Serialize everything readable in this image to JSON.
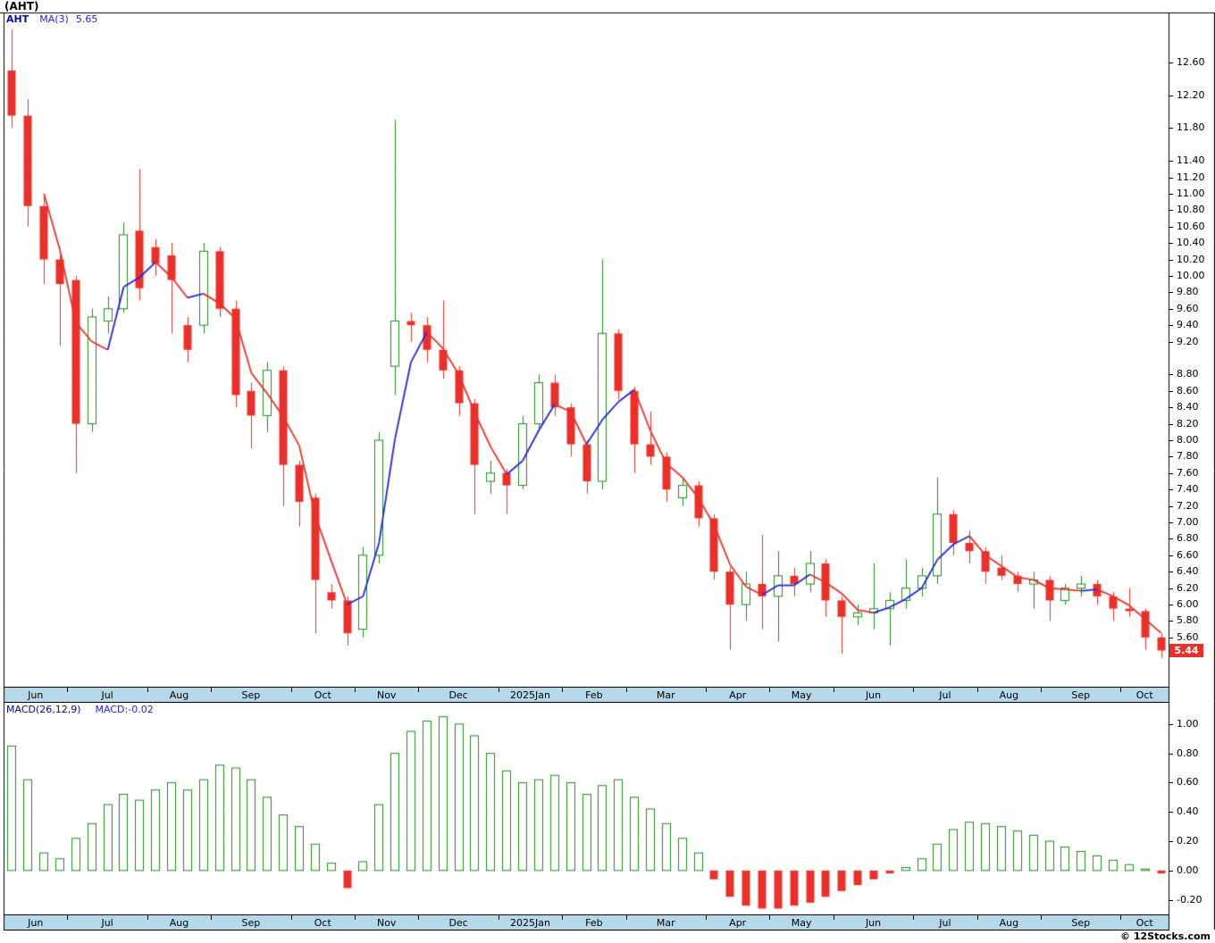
{
  "page": {
    "title": "(AHT)",
    "footer": "© 12Stocks.com"
  },
  "legend": {
    "symbol": "AHT",
    "ma_label": "MA(3)",
    "ma_value": "5.65"
  },
  "macd_header": {
    "indicator_label": "MACD(26,12,9)",
    "current_value_label": "MACD:-0.02"
  },
  "last_price_badge": "5.44",
  "colors": {
    "up": "#1f8a1f",
    "down": "#e8312a",
    "ma_up": "#2626d8",
    "ma_down": "#e8312a",
    "month_band": "#b5d8ea",
    "badge_bg": "#e8312a",
    "grid": "#e3e9e3",
    "frame_line": "#000000"
  },
  "price_axis": {
    "ticks": [
      "12.60",
      "12.20",
      "11.80",
      "11.40",
      "11.20",
      "11.00",
      "10.80",
      "10.60",
      "10.40",
      "10.20",
      "10.00",
      "9.80",
      "9.60",
      "9.40",
      "9.20",
      "8.80",
      "8.60",
      "8.40",
      "8.20",
      "8.00",
      "7.80",
      "7.60",
      "7.40",
      "7.20",
      "7.00",
      "6.80",
      "6.60",
      "6.40",
      "6.20",
      "6.00",
      "5.80",
      "5.60"
    ]
  },
  "macd_axis": {
    "ticks": [
      "1.00",
      "0.80",
      "0.60",
      "0.40",
      "0.20",
      "0.00",
      "-0.20"
    ]
  },
  "chart_data": {
    "type": "candlestick",
    "symbol": "AHT",
    "interval": "weekly",
    "title": "(AHT) weekly candlestick chart with MA(3) overlay and MACD(26,12,9) histogram",
    "price_ylim": [
      5.0,
      13.2
    ],
    "macd_ylim": [
      -0.3,
      1.06
    ],
    "ma_period": 3,
    "last_close": 5.44,
    "months": [
      {
        "label": "Jun",
        "weeks": 4
      },
      {
        "label": "Jul",
        "weeks": 5
      },
      {
        "label": "Aug",
        "weeks": 4
      },
      {
        "label": "Sep",
        "weeks": 5
      },
      {
        "label": "Oct",
        "weeks": 4
      },
      {
        "label": "Nov",
        "weeks": 4
      },
      {
        "label": "Dec",
        "weeks": 5
      },
      {
        "label": "2025Jan",
        "weeks": 4
      },
      {
        "label": "Feb",
        "weeks": 4
      },
      {
        "label": "Mar",
        "weeks": 5
      },
      {
        "label": "Apr",
        "weeks": 4
      },
      {
        "label": "May",
        "weeks": 4
      },
      {
        "label": "Jun",
        "weeks": 5
      },
      {
        "label": "Jul",
        "weeks": 4
      },
      {
        "label": "Aug",
        "weeks": 4
      },
      {
        "label": "Sep",
        "weeks": 5
      },
      {
        "label": "Oct",
        "weeks": 3
      }
    ],
    "ohlc": [
      [
        12.5,
        13.0,
        11.8,
        11.95
      ],
      [
        11.95,
        12.15,
        10.6,
        10.85
      ],
      [
        10.85,
        11.0,
        9.9,
        10.2
      ],
      [
        10.2,
        10.25,
        9.15,
        9.9
      ],
      [
        9.95,
        10.0,
        7.6,
        8.2
      ],
      [
        8.2,
        9.6,
        8.1,
        9.5
      ],
      [
        9.45,
        9.75,
        9.3,
        9.6
      ],
      [
        9.6,
        10.65,
        9.55,
        10.5
      ],
      [
        10.55,
        11.3,
        9.7,
        9.85
      ],
      [
        10.35,
        10.45,
        10.0,
        10.15
      ],
      [
        10.25,
        10.4,
        9.3,
        9.95
      ],
      [
        9.4,
        9.5,
        8.95,
        9.1
      ],
      [
        9.4,
        10.4,
        9.3,
        10.3
      ],
      [
        10.3,
        10.35,
        9.5,
        9.6
      ],
      [
        9.6,
        9.7,
        8.4,
        8.55
      ],
      [
        8.6,
        8.7,
        7.9,
        8.3
      ],
      [
        8.3,
        8.95,
        8.1,
        8.85
      ],
      [
        8.85,
        8.9,
        7.2,
        7.7
      ],
      [
        7.7,
        7.75,
        6.95,
        7.25
      ],
      [
        7.3,
        7.35,
        5.65,
        6.3
      ],
      [
        6.15,
        6.25,
        5.95,
        6.05
      ],
      [
        6.05,
        6.1,
        5.5,
        5.65
      ],
      [
        5.7,
        6.7,
        5.6,
        6.6
      ],
      [
        6.6,
        8.1,
        6.5,
        8.0
      ],
      [
        8.9,
        11.9,
        8.55,
        9.45
      ],
      [
        9.45,
        9.55,
        9.2,
        9.4
      ],
      [
        9.4,
        9.5,
        8.95,
        9.1
      ],
      [
        9.1,
        9.7,
        8.75,
        8.85
      ],
      [
        8.85,
        8.9,
        8.3,
        8.45
      ],
      [
        8.45,
        8.5,
        7.1,
        7.7
      ],
      [
        7.5,
        7.75,
        7.35,
        7.6
      ],
      [
        7.6,
        7.65,
        7.1,
        7.45
      ],
      [
        7.45,
        8.3,
        7.4,
        8.2
      ],
      [
        8.2,
        8.8,
        8.1,
        8.7
      ],
      [
        8.7,
        8.8,
        8.3,
        8.4
      ],
      [
        8.4,
        8.45,
        7.8,
        7.95
      ],
      [
        7.95,
        8.0,
        7.35,
        7.5
      ],
      [
        7.5,
        10.2,
        7.4,
        9.3
      ],
      [
        9.3,
        9.35,
        8.5,
        8.6
      ],
      [
        8.6,
        8.65,
        7.6,
        7.95
      ],
      [
        7.95,
        8.35,
        7.7,
        7.8
      ],
      [
        7.8,
        7.85,
        7.25,
        7.4
      ],
      [
        7.3,
        7.55,
        7.2,
        7.45
      ],
      [
        7.45,
        7.5,
        6.95,
        7.05
      ],
      [
        7.05,
        7.1,
        6.3,
        6.4
      ],
      [
        6.4,
        6.45,
        5.45,
        6.0
      ],
      [
        6.0,
        6.4,
        5.8,
        6.25
      ],
      [
        6.25,
        6.85,
        5.7,
        6.1
      ],
      [
        6.1,
        6.65,
        5.55,
        6.35
      ],
      [
        6.35,
        6.45,
        6.1,
        6.25
      ],
      [
        6.25,
        6.65,
        6.15,
        6.5
      ],
      [
        6.5,
        6.55,
        5.85,
        6.05
      ],
      [
        6.05,
        6.1,
        5.4,
        5.85
      ],
      [
        5.85,
        6.0,
        5.75,
        5.9
      ],
      [
        5.9,
        6.5,
        5.7,
        5.95
      ],
      [
        5.95,
        6.15,
        5.5,
        6.05
      ],
      [
        6.05,
        6.55,
        5.95,
        6.2
      ],
      [
        6.2,
        6.45,
        6.1,
        6.35
      ],
      [
        6.35,
        7.55,
        6.25,
        7.1
      ],
      [
        7.1,
        7.15,
        6.6,
        6.75
      ],
      [
        6.75,
        6.9,
        6.5,
        6.65
      ],
      [
        6.65,
        6.7,
        6.25,
        6.4
      ],
      [
        6.45,
        6.6,
        6.3,
        6.35
      ],
      [
        6.35,
        6.4,
        6.15,
        6.25
      ],
      [
        6.25,
        6.4,
        5.95,
        6.3
      ],
      [
        6.3,
        6.35,
        5.8,
        6.05
      ],
      [
        6.05,
        6.25,
        6.0,
        6.2
      ],
      [
        6.2,
        6.35,
        6.1,
        6.25
      ],
      [
        6.25,
        6.3,
        6.0,
        6.1
      ],
      [
        6.1,
        6.15,
        5.8,
        5.95
      ],
      [
        5.95,
        6.2,
        5.85,
        5.92
      ],
      [
        5.92,
        5.95,
        5.45,
        5.6
      ],
      [
        5.6,
        5.65,
        5.35,
        5.44
      ]
    ],
    "macd": [
      0.85,
      0.62,
      0.12,
      0.08,
      0.22,
      0.32,
      0.45,
      0.52,
      0.48,
      0.55,
      0.6,
      0.55,
      0.62,
      0.72,
      0.7,
      0.62,
      0.5,
      0.38,
      0.3,
      0.18,
      0.05,
      -0.12,
      0.06,
      0.45,
      0.8,
      0.95,
      1.02,
      1.05,
      1.0,
      0.92,
      0.8,
      0.68,
      0.6,
      0.62,
      0.65,
      0.6,
      0.52,
      0.58,
      0.62,
      0.5,
      0.42,
      0.32,
      0.22,
      0.12,
      -0.06,
      -0.18,
      -0.24,
      -0.26,
      -0.26,
      -0.24,
      -0.22,
      -0.18,
      -0.14,
      -0.1,
      -0.06,
      -0.02,
      0.02,
      0.08,
      0.18,
      0.28,
      0.33,
      0.32,
      0.3,
      0.27,
      0.24,
      0.2,
      0.16,
      0.13,
      0.1,
      0.07,
      0.04,
      0.01,
      -0.02
    ]
  }
}
